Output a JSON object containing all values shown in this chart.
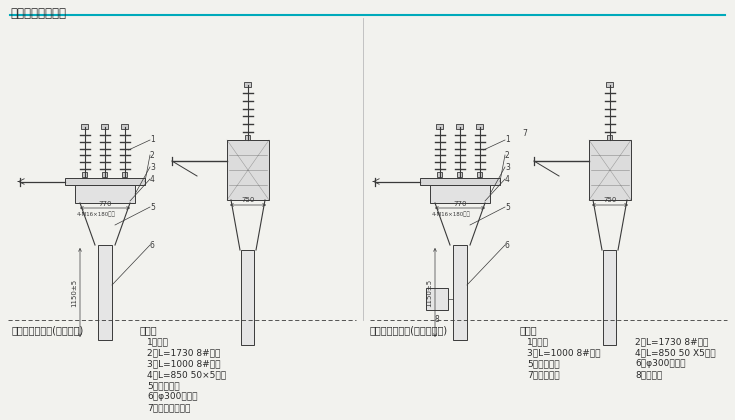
{
  "title": "外形及安装尺寸图",
  "title_color": "#2a2a2a",
  "bg_color": "#f2f2ee",
  "line_color": "#3a3a3a",
  "header_line_color": "#00aabb",
  "left_diagram_label": "开关安装示意图(手动操作)",
  "left_notes_title": "说明：",
  "left_notes": [
    "1、开关",
    "2、L=1730 8#槽锂",
    "3、L=1000 8#槽锂",
    "4、L=850 50×5角多",
    "5、撑起抱箍",
    "6、φ300电线杆",
    "7、手动操作手柄"
  ],
  "right_diagram_label": "开关安装示意图(配电动机构)",
  "right_notes_title": "说明：",
  "right_notes_col1": [
    "1、开关",
    "3、L=1000 8#槽锂",
    "5、撑起抱箍",
    "7、电动机构"
  ],
  "right_notes_col2": [
    "2、L=1730 8#槽锂",
    "4、L=850 50 X5角锂",
    "6、φ300电线杆",
    "8、控制筱"
  ],
  "dim_770": "770",
  "dim_750": "750",
  "dim_1150": "1150±5",
  "bolt_label": "4-M16×180螺栓"
}
